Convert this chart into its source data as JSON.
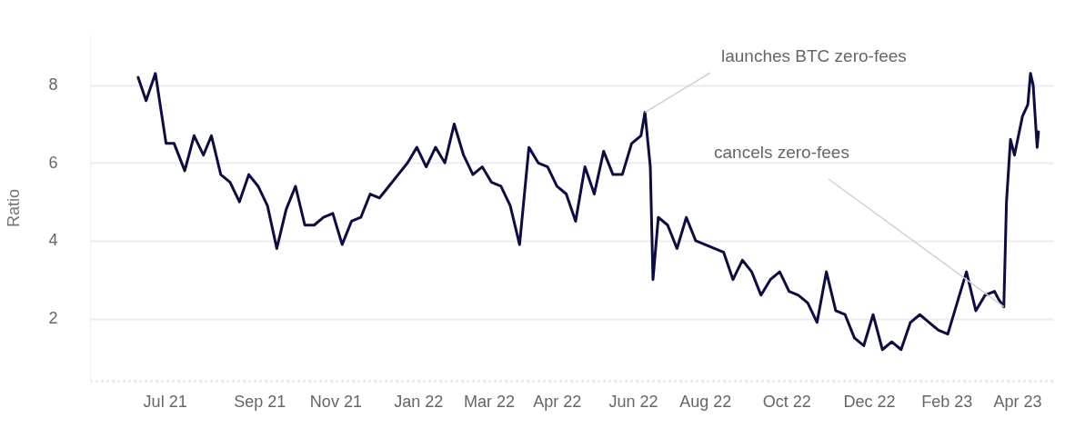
{
  "chart_data": {
    "type": "line",
    "ylabel": "Ratio",
    "grid": "y",
    "ylim": [
      0.4,
      9.3
    ],
    "yticks": [
      2,
      4,
      6,
      8
    ],
    "xlim": [
      "2021-05-06",
      "2023-04-28"
    ],
    "xticks": [
      {
        "value": "2021-07-01",
        "label": "Jul 21"
      },
      {
        "value": "2021-09-10",
        "label": "Sep 21"
      },
      {
        "value": "2021-11-06",
        "label": "Nov 21"
      },
      {
        "value": "2022-01-07",
        "label": "Jan 22"
      },
      {
        "value": "2022-03-01",
        "label": "Mar 22"
      },
      {
        "value": "2022-04-21",
        "label": "Apr 22"
      },
      {
        "value": "2022-06-17",
        "label": "Jun 22"
      },
      {
        "value": "2022-08-10",
        "label": "Aug 22"
      },
      {
        "value": "2022-10-10",
        "label": "Oct 22"
      },
      {
        "value": "2022-12-11",
        "label": "Dec 22"
      },
      {
        "value": "2023-02-07",
        "label": "Feb 23"
      },
      {
        "value": "2023-04-01",
        "label": "Apr 23"
      }
    ],
    "x": [
      "2021-06-11",
      "2021-06-17",
      "2021-06-24",
      "2021-07-02",
      "2021-07-08",
      "2021-07-16",
      "2021-07-23",
      "2021-07-30",
      "2021-08-05",
      "2021-08-12",
      "2021-08-19",
      "2021-08-26",
      "2021-09-02",
      "2021-09-09",
      "2021-09-16",
      "2021-09-23",
      "2021-09-30",
      "2021-10-07",
      "2021-10-14",
      "2021-10-21",
      "2021-10-28",
      "2021-11-04",
      "2021-11-11",
      "2021-11-18",
      "2021-11-25",
      "2021-12-02",
      "2021-12-09",
      "2021-12-16",
      "2021-12-23",
      "2021-12-30",
      "2022-01-06",
      "2022-01-13",
      "2022-01-20",
      "2022-01-27",
      "2022-02-03",
      "2022-02-10",
      "2022-02-17",
      "2022-02-24",
      "2022-03-03",
      "2022-03-10",
      "2022-03-17",
      "2022-03-24",
      "2022-03-31",
      "2022-04-07",
      "2022-04-14",
      "2022-04-21",
      "2022-04-28",
      "2022-05-05",
      "2022-05-12",
      "2022-05-19",
      "2022-05-26",
      "2022-06-02",
      "2022-06-09",
      "2022-06-16",
      "2022-06-23",
      "2022-06-26",
      "2022-06-30",
      "2022-07-02",
      "2022-07-06",
      "2022-07-13",
      "2022-07-20",
      "2022-07-27",
      "2022-08-03",
      "2022-08-10",
      "2022-08-17",
      "2022-08-24",
      "2022-08-31",
      "2022-09-07",
      "2022-09-14",
      "2022-09-21",
      "2022-09-28",
      "2022-10-05",
      "2022-10-12",
      "2022-10-19",
      "2022-10-26",
      "2022-11-02",
      "2022-11-09",
      "2022-11-16",
      "2022-11-23",
      "2022-11-30",
      "2022-12-07",
      "2022-12-14",
      "2022-12-21",
      "2022-12-28",
      "2023-01-04",
      "2023-01-11",
      "2023-01-18",
      "2023-01-25",
      "2023-02-01",
      "2023-02-08",
      "2023-02-15",
      "2023-02-22",
      "2023-03-01",
      "2023-03-08",
      "2023-03-15",
      "2023-03-18",
      "2023-03-22",
      "2023-03-24",
      "2023-03-27",
      "2023-03-30",
      "2023-04-02",
      "2023-04-05",
      "2023-04-09",
      "2023-04-11",
      "2023-04-13",
      "2023-04-16",
      "2023-04-17"
    ],
    "series": [
      {
        "color": "#0d0c45",
        "values": [
          8.2,
          7.6,
          8.3,
          6.5,
          6.5,
          5.8,
          6.7,
          6.2,
          6.7,
          5.7,
          5.5,
          5.0,
          5.7,
          5.4,
          4.9,
          3.8,
          4.8,
          5.4,
          4.4,
          4.4,
          4.6,
          4.7,
          3.9,
          4.5,
          4.6,
          5.2,
          5.1,
          5.4,
          5.7,
          6.0,
          6.4,
          5.9,
          6.4,
          6.0,
          7.0,
          6.2,
          5.7,
          5.9,
          5.5,
          5.4,
          4.9,
          3.9,
          6.4,
          6.0,
          5.9,
          5.4,
          5.2,
          4.5,
          5.9,
          5.2,
          6.3,
          5.7,
          5.7,
          6.5,
          6.7,
          7.3,
          5.9,
          3.0,
          4.6,
          4.4,
          3.8,
          4.6,
          4.0,
          3.9,
          3.8,
          3.7,
          3.0,
          3.5,
          3.2,
          2.6,
          3.0,
          3.2,
          2.7,
          2.6,
          2.4,
          1.9,
          3.2,
          2.2,
          2.1,
          1.5,
          1.3,
          2.1,
          1.2,
          1.4,
          1.2,
          1.9,
          2.1,
          1.9,
          1.7,
          1.6,
          2.4,
          3.2,
          2.2,
          2.6,
          2.7,
          2.5,
          2.3,
          5.0,
          6.6,
          6.2,
          6.7,
          7.2,
          7.5,
          8.3,
          8.0,
          6.4,
          6.8
        ]
      }
    ],
    "annotations": [
      {
        "text": "launches BTC zero-fees",
        "x": "2022-06-26",
        "y": 7.3
      },
      {
        "text": "cancels zero-fees",
        "x": "2023-03-22",
        "y": 2.3
      }
    ]
  }
}
